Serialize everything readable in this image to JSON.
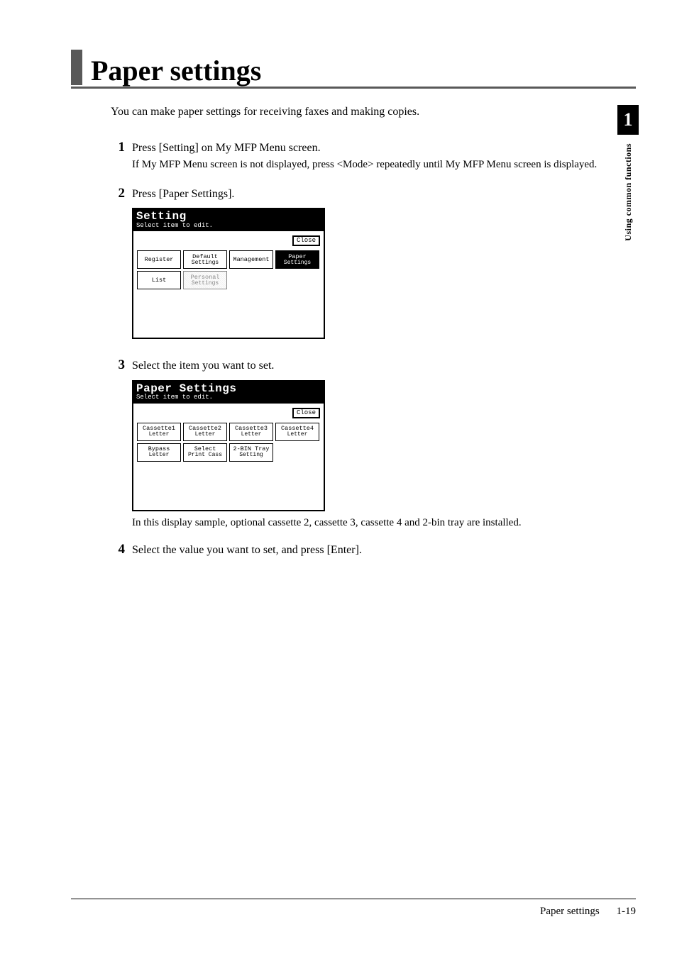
{
  "title": "Paper settings",
  "intro": "You can make paper settings for receiving faxes and making copies.",
  "side_tab": {
    "num": "1",
    "label": "Using common functions"
  },
  "steps": {
    "s1": {
      "num": "1",
      "main": "Press [Setting] on My MFP Menu screen.",
      "sub": "If My MFP Menu screen is not displayed, press <Mode> repeatedly until My MFP Menu screen is displayed."
    },
    "s2": {
      "num": "2",
      "main": "Press [Paper Settings]."
    },
    "s3": {
      "num": "3",
      "main": "Select the item you want to set.",
      "note": "In this display sample, optional cassette 2, cassette 3, cassette 4 and 2-bin tray are installed."
    },
    "s4": {
      "num": "4",
      "main": "Select the value you want to set, and press [Enter]."
    }
  },
  "lcd1": {
    "title": "Setting",
    "sub": "Select item to edit.",
    "close": "Close",
    "btns": {
      "register": "Register",
      "default_top": "Default",
      "default_bot": "Settings",
      "management": "Management",
      "paper_top": "Paper",
      "paper_bot": "Settings",
      "list": "List",
      "personal_top": "Personal",
      "personal_bot": "Settings"
    }
  },
  "lcd2": {
    "title": "Paper Settings",
    "sub": "Select item to edit.",
    "close": "Close",
    "btns": {
      "c1_top": "Cassette1",
      "c1_bot": "Letter",
      "c2_top": "Cassette2",
      "c2_bot": "Letter",
      "c3_top": "Cassette3",
      "c3_bot": "Letter",
      "c4_top": "Cassette4",
      "c4_bot": "Letter",
      "bp_top": "Bypass",
      "bp_bot": "Letter",
      "sel_top": "Select",
      "sel_bot": "Print Cass",
      "bin_top": "2-BIN Tray",
      "bin_bot": "Setting"
    }
  },
  "footer": {
    "label": "Paper settings",
    "page": "1-19"
  }
}
